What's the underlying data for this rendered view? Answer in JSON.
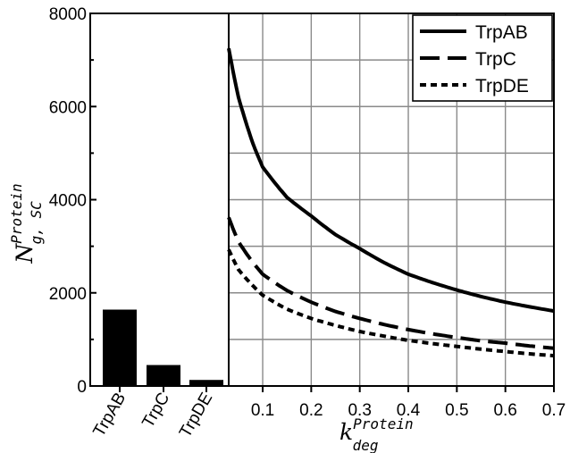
{
  "chart_data": [
    {
      "type": "bar",
      "categories": [
        "TrpAB",
        "TrpC",
        "TrpDE"
      ],
      "values": [
        1640,
        450,
        130
      ],
      "ylim": [
        0,
        8000
      ],
      "yticks": [
        0,
        2000,
        4000,
        6000,
        8000
      ],
      "ylabel": {
        "main": "N",
        "sup": "Protein",
        "sub": "g, SC"
      },
      "color": "#000000",
      "grid": false
    },
    {
      "type": "line",
      "xlabel": {
        "main": "k",
        "sup": "Protein",
        "sub": "deg"
      },
      "xlim": [
        0.03,
        0.7
      ],
      "ylim": [
        0,
        8000
      ],
      "xticks": [
        0.1,
        0.2,
        0.3,
        0.4,
        0.5,
        0.6,
        0.7
      ],
      "xtick_labels": [
        "0.1",
        "0.2",
        "0.3",
        "0.4",
        "0.5",
        "0.6",
        "0.7"
      ],
      "grid": true,
      "legend": "top-right",
      "series": [
        {
          "name": "TrpAB",
          "style": "solid",
          "x": [
            0.03,
            0.05,
            0.08,
            0.1,
            0.15,
            0.2,
            0.25,
            0.3,
            0.35,
            0.4,
            0.45,
            0.5,
            0.55,
            0.6,
            0.65,
            0.7
          ],
          "y": [
            7250,
            6200,
            5200,
            4700,
            4050,
            3650,
            3250,
            2950,
            2650,
            2400,
            2220,
            2060,
            1920,
            1800,
            1700,
            1610
          ]
        },
        {
          "name": "TrpC",
          "style": "dashed",
          "x": [
            0.03,
            0.05,
            0.08,
            0.1,
            0.15,
            0.2,
            0.25,
            0.3,
            0.35,
            0.4,
            0.45,
            0.5,
            0.55,
            0.6,
            0.65,
            0.7
          ],
          "y": [
            3620,
            3100,
            2650,
            2400,
            2050,
            1800,
            1600,
            1450,
            1320,
            1210,
            1120,
            1040,
            970,
            920,
            860,
            810
          ]
        },
        {
          "name": "TrpDE",
          "style": "dotted",
          "x": [
            0.03,
            0.05,
            0.08,
            0.1,
            0.15,
            0.2,
            0.25,
            0.3,
            0.35,
            0.4,
            0.45,
            0.5,
            0.55,
            0.6,
            0.65,
            0.7
          ],
          "y": [
            2930,
            2500,
            2150,
            1950,
            1650,
            1450,
            1300,
            1170,
            1070,
            980,
            910,
            850,
            790,
            740,
            690,
            650
          ]
        }
      ]
    }
  ]
}
